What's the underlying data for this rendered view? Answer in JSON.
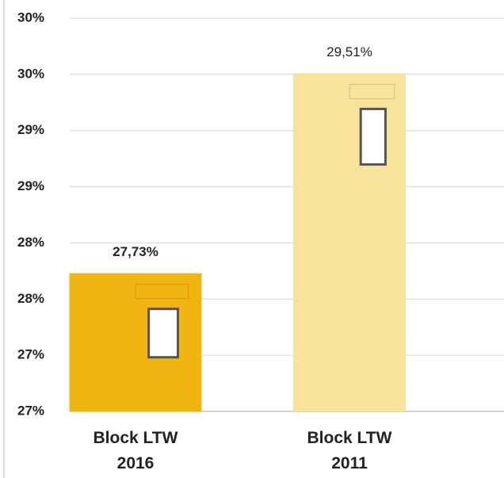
{
  "chart_data": {
    "type": "bar",
    "categories": [
      "Block LTW 2016",
      "Block LTW 2011"
    ],
    "values": [
      27.73,
      29.51
    ],
    "value_labels": [
      "27,73%",
      "29,51%"
    ],
    "colors": [
      "#f0b513",
      "#f8e39a"
    ],
    "ylim": [
      26.5,
      30
    ],
    "yticks": [
      {
        "value": 26.5,
        "label": "27%"
      },
      {
        "value": 27,
        "label": "27%"
      },
      {
        "value": 27.5,
        "label": "28%"
      },
      {
        "value": 28,
        "label": "28%"
      },
      {
        "value": 28.5,
        "label": "29%"
      },
      {
        "value": 29,
        "label": "29%"
      },
      {
        "value": 29.5,
        "label": "30%"
      },
      {
        "value": 30,
        "label": "30%"
      }
    ],
    "grid": true
  }
}
